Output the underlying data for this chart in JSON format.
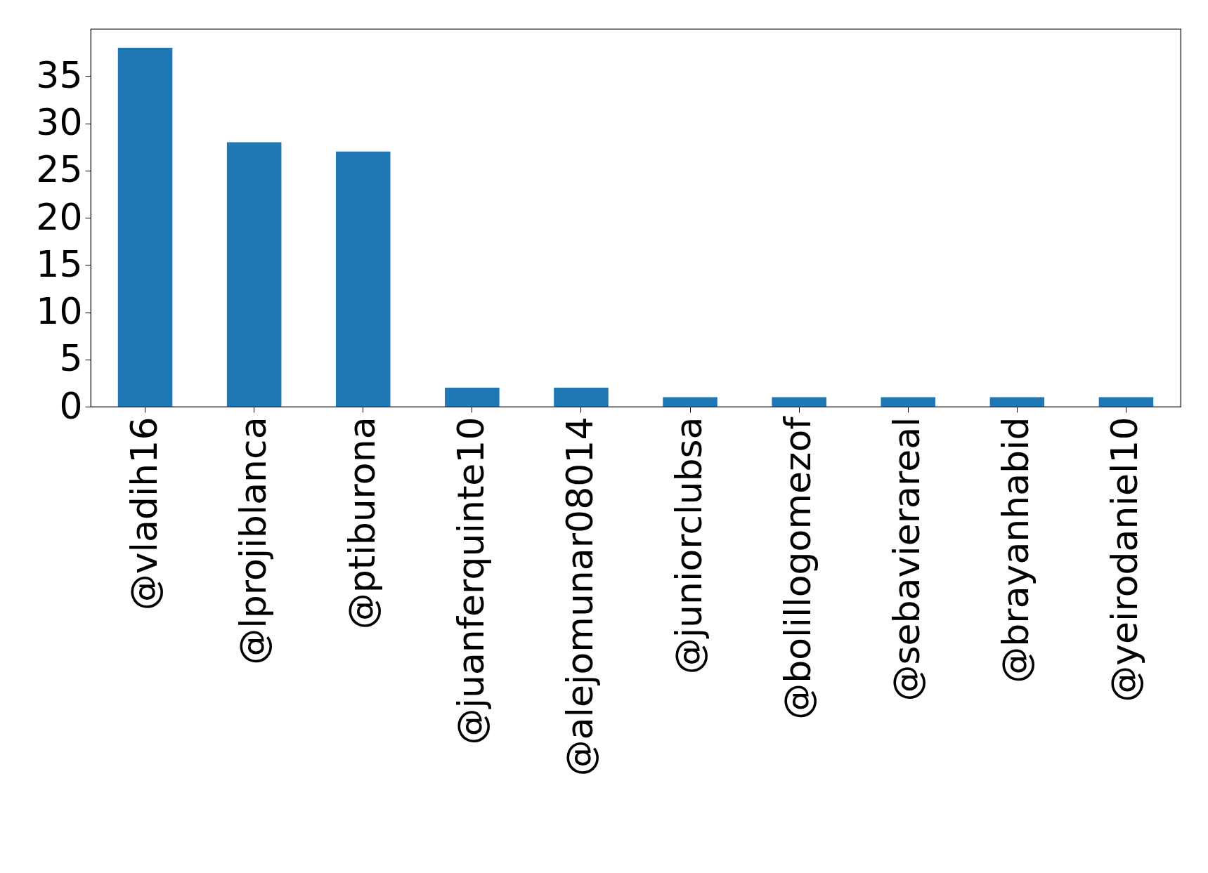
{
  "chart_data": {
    "type": "bar",
    "categories": [
      "@vladih16",
      "@lprojiblanca",
      "@ptiburona",
      "@juanferquinte10",
      "@alejomunar08014",
      "@juniorclubsa",
      "@bolillogomezof",
      "@sebavierareal",
      "@brayanhabid",
      "@yeirodaniel10"
    ],
    "values": [
      38,
      28,
      27,
      2,
      2,
      1,
      1,
      1,
      1,
      1
    ],
    "color": "#1f77b4",
    "ylim": [
      0,
      40
    ],
    "yticks": [
      0,
      5,
      10,
      15,
      20,
      25,
      30,
      35
    ],
    "grid": false
  }
}
